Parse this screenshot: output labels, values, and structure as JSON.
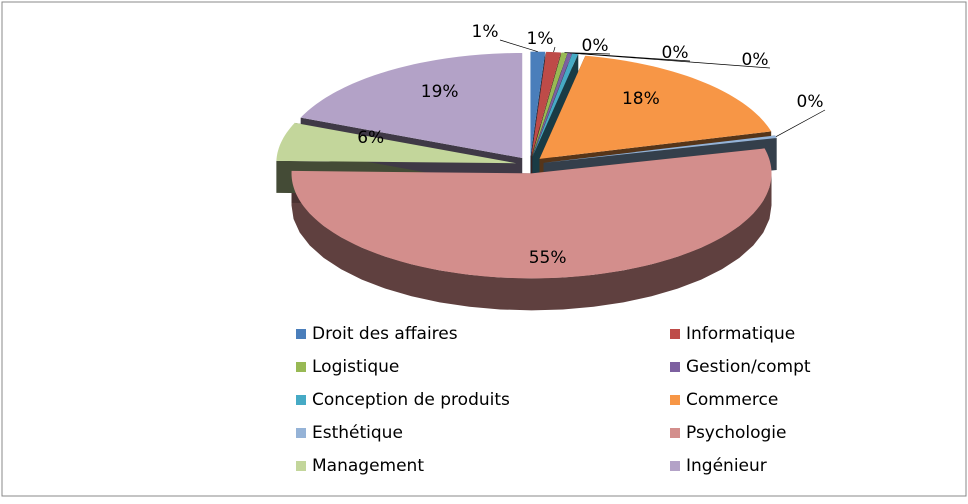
{
  "chart_data": {
    "type": "pie",
    "categories": [
      "Droit des affaires",
      "Informatique",
      "Logistique",
      "Gestion/compt",
      "Conception de produits",
      "Commerce",
      "Esthétique",
      "Psychologie",
      "Management",
      "Ingénieur"
    ],
    "values": [
      1,
      1,
      0.4,
      0.3,
      0.4,
      18,
      0.4,
      55,
      6,
      19
    ],
    "value_labels": [
      "1%",
      "1%",
      "0%",
      "0%",
      "0%",
      "18%",
      "0%",
      "55%",
      "6%",
      "19%"
    ],
    "colors": [
      "#4a7ebb",
      "#be4b48",
      "#98b954",
      "#7d60a0",
      "#46aac5",
      "#f79646",
      "#95b3d7",
      "#d38e8c",
      "#c3d69b",
      "#b3a2c7"
    ],
    "legend": "bottom"
  }
}
